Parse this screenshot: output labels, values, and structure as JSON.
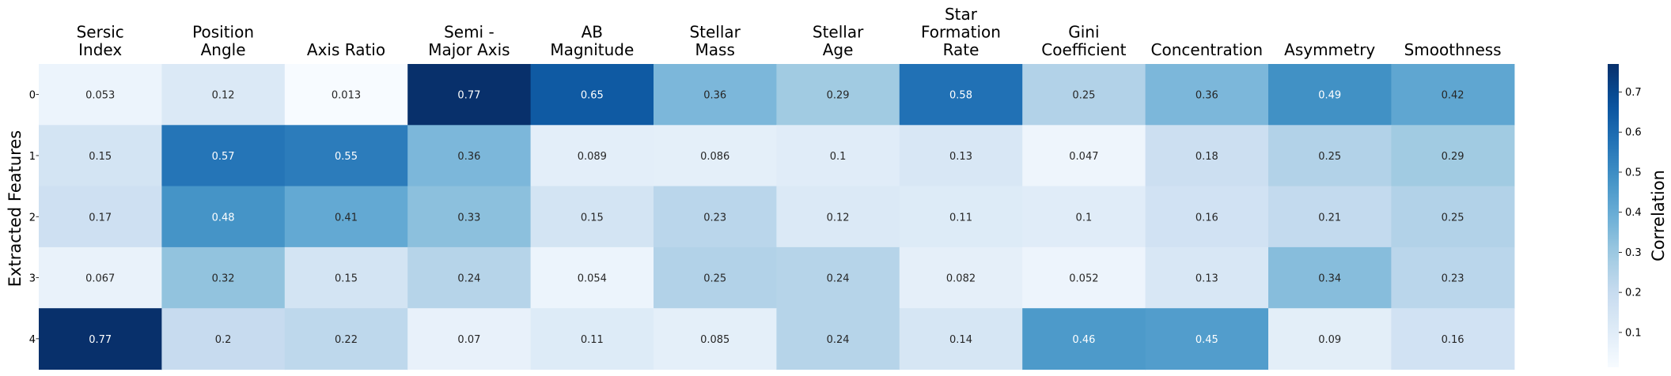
{
  "chart_data": {
    "type": "heatmap",
    "title": "",
    "ylabel": "Extracted Features",
    "xlabel": "",
    "x_position": "top",
    "columns": [
      [
        "Sersic",
        "Index"
      ],
      [
        "Position",
        "Angle"
      ],
      [
        "Axis Ratio"
      ],
      [
        "Semi -",
        "Major Axis"
      ],
      [
        "AB",
        "Magnitude"
      ],
      [
        "Stellar",
        "Mass"
      ],
      [
        "Stellar",
        "Age"
      ],
      [
        "Star",
        "Formation",
        "Rate"
      ],
      [
        "Gini",
        "Coefficient"
      ],
      [
        "Concentration"
      ],
      [
        "Asymmetry"
      ],
      [
        "Smoothness"
      ]
    ],
    "rows": [
      "0",
      "1",
      "2",
      "3",
      "4"
    ],
    "values": [
      [
        0.053,
        0.12,
        0.013,
        0.77,
        0.65,
        0.36,
        0.29,
        0.58,
        0.25,
        0.36,
        0.49,
        0.42
      ],
      [
        0.15,
        0.57,
        0.55,
        0.36,
        0.089,
        0.086,
        0.1,
        0.13,
        0.047,
        0.18,
        0.25,
        0.29
      ],
      [
        0.17,
        0.48,
        0.41,
        0.33,
        0.15,
        0.23,
        0.12,
        0.11,
        0.1,
        0.16,
        0.21,
        0.25
      ],
      [
        0.067,
        0.32,
        0.15,
        0.24,
        0.054,
        0.25,
        0.24,
        0.082,
        0.052,
        0.13,
        0.34,
        0.23
      ],
      [
        0.77,
        0.2,
        0.22,
        0.07,
        0.11,
        0.085,
        0.24,
        0.14,
        0.46,
        0.45,
        0.09,
        0.16
      ]
    ],
    "colormap": "Blues",
    "colorbar": {
      "label": "Correlation",
      "min": 0.013,
      "max": 0.77,
      "ticks": [
        0.1,
        0.2,
        0.3,
        0.4,
        0.5,
        0.6,
        0.7
      ],
      "tick_labels": [
        "0.1",
        "0.2",
        "0.3",
        "0.4",
        "0.5",
        "0.6",
        "0.7"
      ]
    },
    "text_dark_color": "#262626",
    "text_light_color": "#ffffff"
  }
}
